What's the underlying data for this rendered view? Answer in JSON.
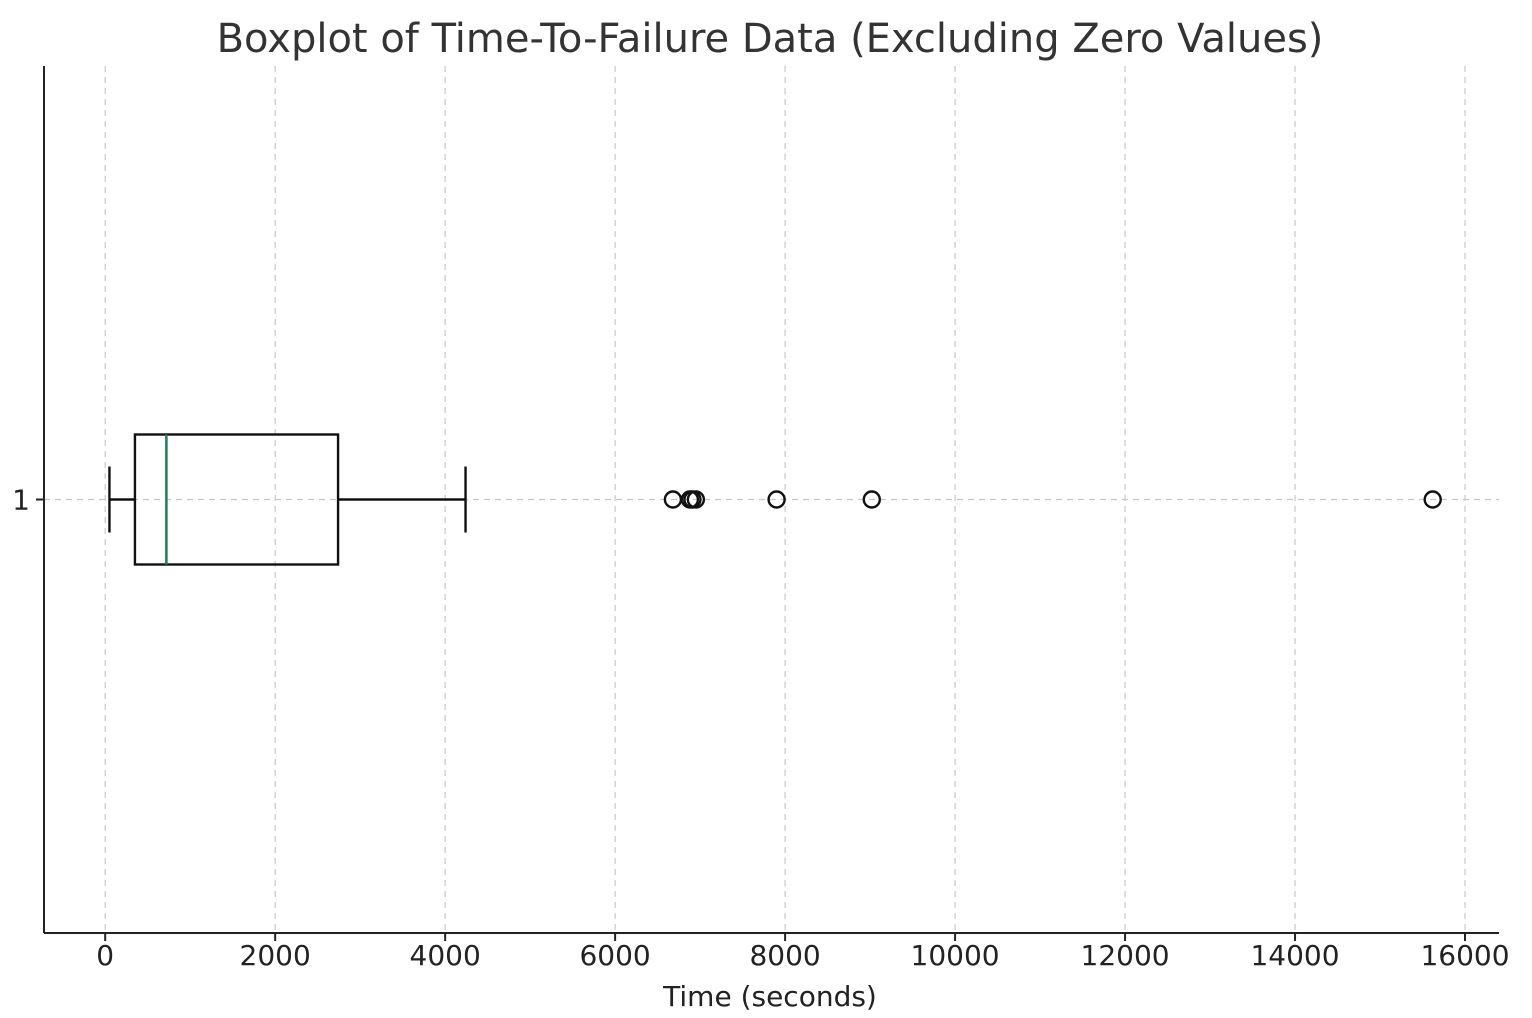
{
  "chart_data": {
    "type": "boxplot",
    "title": "Boxplot of Time-To-Failure Data (Excluding Zero Values)",
    "xlabel": "Time (seconds)",
    "ylabel": "",
    "orientation": "horizontal",
    "categories": [
      "1"
    ],
    "xlim": [
      -720,
      16400
    ],
    "xticks": [
      0,
      2000,
      4000,
      6000,
      8000,
      10000,
      12000,
      14000,
      16000
    ],
    "xtick_labels": [
      "0",
      "2000",
      "4000",
      "6000",
      "8000",
      "10000",
      "12000",
      "14000",
      "16000"
    ],
    "grid": true,
    "boxes": [
      {
        "category": "1",
        "whisker_low": 50,
        "q1": 350,
        "median": 720,
        "q3": 2740,
        "whisker_high": 4240,
        "outliers": [
          6680,
          6880,
          6910,
          6950,
          7900,
          9020,
          15620
        ]
      }
    ],
    "colors": {
      "median": "#2f7d5f",
      "box": "#111111",
      "grid": "#c8c8c8"
    }
  }
}
